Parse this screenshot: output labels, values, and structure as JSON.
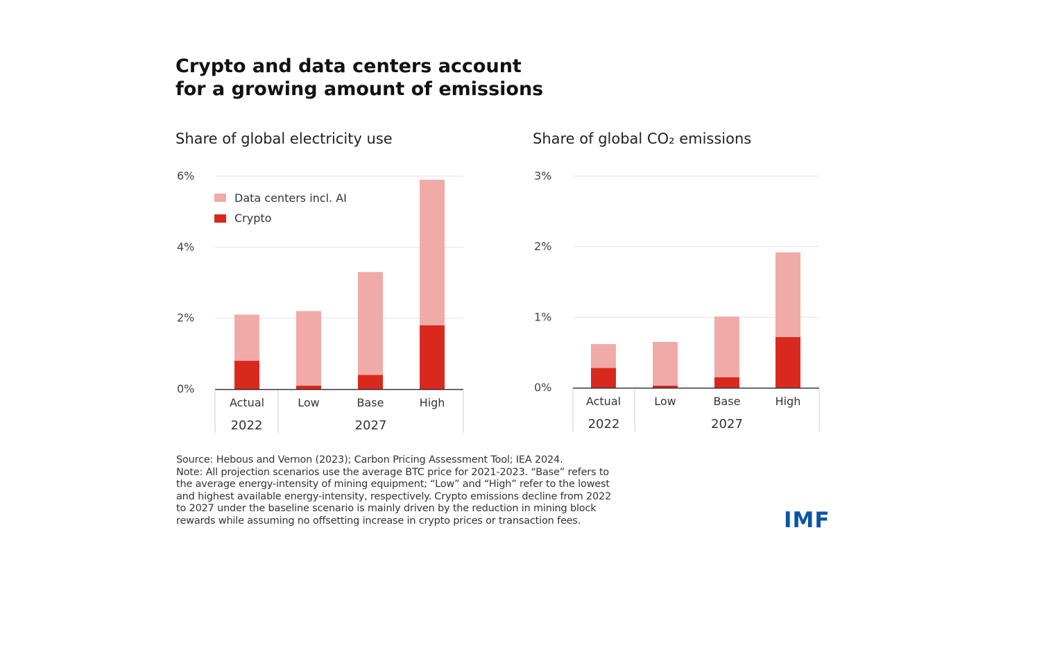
{
  "title_line1": "Crypto and data centers account",
  "title_line2": "for a growing amount of emissions",
  "colors": {
    "data_centers": "#f0aaa8",
    "crypto": "#d9291e",
    "imf_blue": "#0b55a8"
  },
  "legend": [
    {
      "label": "Data centers incl. AI",
      "color": "#f0aaa8"
    },
    {
      "label": "Crypto",
      "color": "#d9291e"
    }
  ],
  "chart_data": [
    {
      "type": "bar",
      "stacked": true,
      "title": "Share of global electricity use",
      "categories": [
        "Actual",
        "Low",
        "Base",
        "High"
      ],
      "groups": [
        {
          "label": "2022",
          "categories": [
            "Actual"
          ]
        },
        {
          "label": "2027",
          "categories": [
            "Low",
            "Base",
            "High"
          ]
        }
      ],
      "yticks": [
        "0%",
        "2%",
        "4%",
        "6%"
      ],
      "ylim": [
        0,
        6
      ],
      "grid": true,
      "legend_position": "top-left",
      "series": [
        {
          "name": "Crypto",
          "values": [
            0.8,
            0.1,
            0.4,
            1.8
          ]
        },
        {
          "name": "Data centers incl. AI",
          "values": [
            1.3,
            2.1,
            2.9,
            4.1
          ]
        }
      ]
    },
    {
      "type": "bar",
      "stacked": true,
      "title": "Share of global CO₂ emissions",
      "categories": [
        "Actual",
        "Low",
        "Base",
        "High"
      ],
      "groups": [
        {
          "label": "2022",
          "categories": [
            "Actual"
          ]
        },
        {
          "label": "2027",
          "categories": [
            "Low",
            "Base",
            "High"
          ]
        }
      ],
      "yticks": [
        "0%",
        "1%",
        "2%",
        "3%"
      ],
      "ylim": [
        0,
        3
      ],
      "grid": true,
      "series": [
        {
          "name": "Crypto",
          "values": [
            0.28,
            0.03,
            0.15,
            0.72
          ]
        },
        {
          "name": "Data centers incl. AI",
          "values": [
            0.34,
            0.62,
            0.86,
            1.2
          ]
        }
      ]
    }
  ],
  "notes": [
    "Source: Hebous and Vernon (2023); Carbon Pricing Assessment Tool; IEA 2024.",
    "Note: All projection scenarios use the average BTC price for 2021-2023. “Base” refers to",
    "the average energy-intensity of mining equipment; “Low” and “High” refer to the lowest",
    "and highest available energy-intensity, respectively. Crypto emissions decline from 2022",
    "to 2027 under the baseline scenario is mainly driven by the reduction in mining block",
    "rewards while assuming no offsetting increase in crypto prices or transaction fees."
  ],
  "logo": "IMF"
}
